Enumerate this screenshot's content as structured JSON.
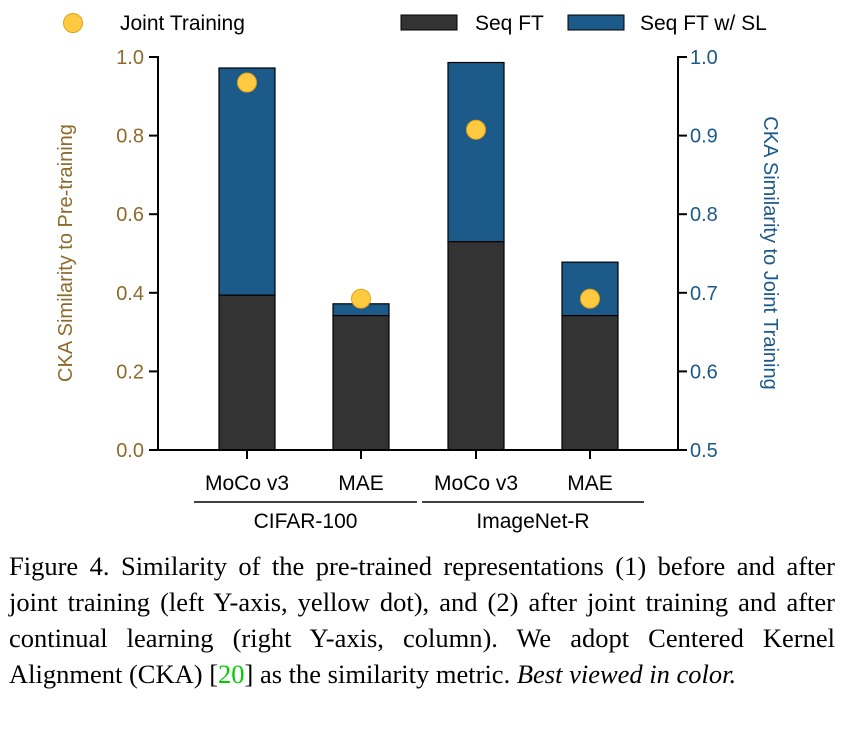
{
  "chart_data": {
    "type": "bar",
    "stacked": true,
    "groups": [
      {
        "label": "CIFAR-100",
        "categories": [
          "MoCo v3",
          "MAE"
        ]
      },
      {
        "label": "ImageNet-R",
        "categories": [
          "MoCo v3",
          "MAE"
        ]
      }
    ],
    "categories": [
      "MoCo v3",
      "MAE",
      "MoCo v3",
      "MAE"
    ],
    "series": [
      {
        "name": "Seq FT",
        "axis": "right",
        "color": "#333333",
        "values": [
          0.697,
          0.671,
          0.765,
          0.671
        ]
      },
      {
        "name": "Seq FT w/ SL",
        "axis": "right",
        "color": "#1c5a8a",
        "values": [
          0.986,
          0.686,
          0.993,
          0.739
        ]
      }
    ],
    "points": {
      "name": "Joint Training",
      "axis": "left",
      "color": "#ffc940",
      "values": [
        0.935,
        0.385,
        0.815,
        0.385
      ]
    },
    "left_axis": {
      "label": "CKA Similarity to Pre-training",
      "ylim": [
        0.0,
        1.0
      ],
      "ticks": [
        "0.0",
        "0.2",
        "0.4",
        "0.6",
        "0.8",
        "1.0"
      ],
      "color": "#8e6b2c"
    },
    "right_axis": {
      "label": "CKA Similarity to Joint Training",
      "ylim": [
        0.5,
        1.0
      ],
      "ticks": [
        "0.5",
        "0.6",
        "0.7",
        "0.8",
        "0.9",
        "1.0"
      ],
      "color": "#1c5a8a"
    },
    "legend": {
      "placement": "top"
    }
  },
  "caption": {
    "text": "Figure 4. Similarity of the pre-trained representations (1) before and after joint training (left Y-axis, yellow dot), and (2) after joint training and after continual learning (right Y-axis, column). We adopt Centered Kernel Alignment (CKA) [",
    "ref": "20",
    "text_after": "] as the similarity metric. ",
    "emphasis": "Best viewed in color."
  }
}
